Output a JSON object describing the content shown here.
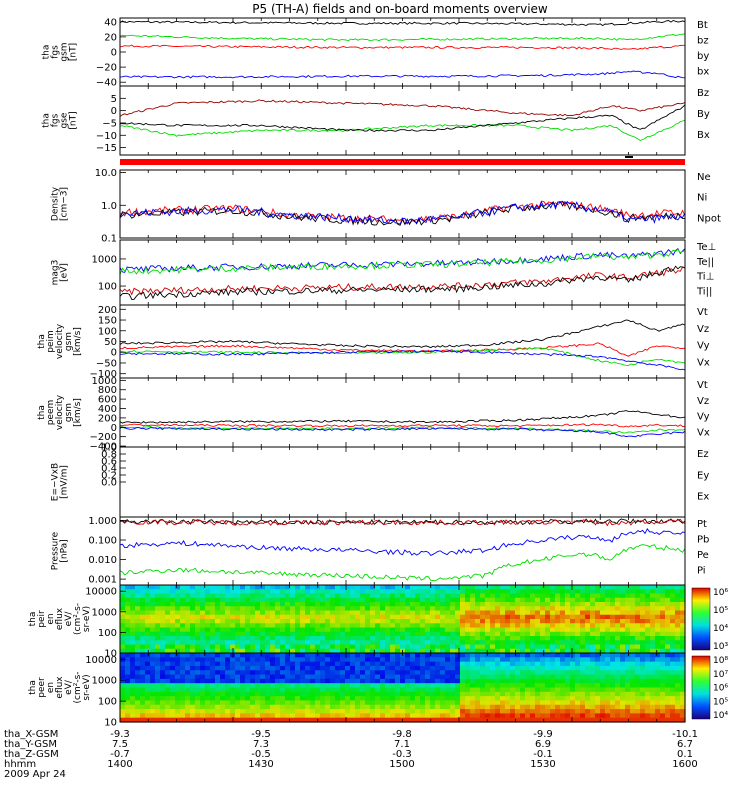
{
  "title": "P5 (TH-A) fields and on-board moments overview",
  "footer": {
    "date": "2009 Apr 24",
    "rows": [
      {
        "label": "tha_X-GSM",
        "values": [
          "-9.3",
          "-9.5",
          "-9.8",
          "-9.9",
          "-10.1"
        ]
      },
      {
        "label": "tha_Y-GSM",
        "values": [
          "7.5",
          "7.3",
          "7.1",
          "6.9",
          "6.7"
        ]
      },
      {
        "label": "tha_Z-GSM",
        "values": [
          "-0.7",
          "-0.5",
          "-0.3",
          "-0.1",
          "0.1"
        ]
      },
      {
        "label": "hhmm",
        "values": [
          "1400",
          "1430",
          "1500",
          "1530",
          "1600"
        ]
      }
    ]
  },
  "colorbars": {
    "ion": [
      "10⁶",
      "10⁵",
      "10⁴",
      "10³"
    ],
    "electron": [
      "10⁸",
      "10⁷",
      "10⁶",
      "10⁵",
      "10⁴"
    ]
  },
  "chart_data": [
    {
      "type": "line",
      "id": "fgs_gsm",
      "ylabel": [
        "tha",
        "fgs",
        "gsm",
        "[nT]"
      ],
      "ylim": [
        -45,
        45
      ],
      "yticks": [
        "40",
        "20",
        "0",
        "−20",
        "−40"
      ],
      "yticks_values": [
        40,
        20,
        0,
        -20,
        -40
      ],
      "x": [
        0,
        0.2,
        0.4,
        0.6,
        0.75,
        0.85,
        0.9,
        0.95,
        1.0
      ],
      "series": [
        {
          "name": "Bt",
          "color": "#000000",
          "values": [
            40,
            39,
            38,
            38,
            37,
            36,
            38,
            40,
            41
          ]
        },
        {
          "name": "bz",
          "color": "#ff0000",
          "values": [
            8,
            7,
            6,
            6,
            6,
            5,
            3,
            6,
            8
          ]
        },
        {
          "name": "by",
          "color": "#00dd00",
          "values": [
            22,
            18,
            16,
            17,
            18,
            18,
            16,
            20,
            24
          ]
        },
        {
          "name": "bx",
          "color": "#0000ff",
          "values": [
            -33,
            -33,
            -32,
            -32,
            -31,
            -29,
            -26,
            -28,
            -35
          ]
        }
      ]
    },
    {
      "type": "line",
      "id": "fgs_gse",
      "ylabel": [
        "tha",
        "fgs",
        "gse",
        "[nT]"
      ],
      "ylim": [
        -18,
        10
      ],
      "yticks": [
        "5",
        "0",
        "−5",
        "−10",
        "−15"
      ],
      "yticks_values": [
        5,
        0,
        -5,
        -10,
        -15
      ],
      "x": [
        0,
        0.1,
        0.25,
        0.4,
        0.55,
        0.7,
        0.8,
        0.87,
        0.92,
        1.0
      ],
      "series": [
        {
          "name": "Bz",
          "color": "#990000",
          "values": [
            -2,
            3,
            4,
            3,
            2,
            -1,
            -2,
            2,
            0,
            3
          ]
        },
        {
          "name": "By",
          "color": "#00dd00",
          "values": [
            -6,
            -10,
            -8,
            -8,
            -6,
            -6,
            -8,
            -6,
            -12,
            -4
          ]
        },
        {
          "name": "Bx",
          "color": "#000000",
          "values": [
            -5,
            -6,
            -6,
            -8,
            -8,
            -5,
            -3,
            -2,
            -8,
            2
          ]
        }
      ]
    },
    {
      "type": "line",
      "id": "density",
      "scale": "log",
      "ylabel": [
        "Density",
        "[cm−3]"
      ],
      "ylim": [
        0.1,
        12
      ],
      "yticks": [
        "10.0",
        "1.0",
        "0.1"
      ],
      "yticks_values": [
        10,
        1,
        0.1
      ],
      "x": [
        0,
        0.1,
        0.2,
        0.3,
        0.4,
        0.5,
        0.6,
        0.7,
        0.78,
        0.85,
        0.9,
        1.0
      ],
      "series": [
        {
          "name": "Ne",
          "color": "#ff0000",
          "values": [
            0.6,
            0.7,
            0.8,
            0.5,
            0.4,
            0.35,
            0.45,
            0.9,
            1.1,
            0.8,
            0.5,
            0.6
          ]
        },
        {
          "name": "Ni",
          "color": "#000000",
          "values": [
            0.5,
            0.6,
            0.7,
            0.45,
            0.35,
            0.3,
            0.4,
            0.8,
            1.0,
            0.7,
            0.4,
            0.5
          ]
        },
        {
          "name": "Npot",
          "color": "#0000ff",
          "values": [
            0.55,
            0.65,
            0.75,
            0.5,
            0.4,
            0.32,
            0.42,
            0.85,
            1.05,
            0.75,
            0.35,
            0.45
          ]
        }
      ]
    },
    {
      "type": "line",
      "id": "temperature",
      "scale": "log",
      "ylabel": [
        "mag3",
        "[eV]"
      ],
      "ylim": [
        20,
        5000
      ],
      "yticks": [
        "1000",
        "100"
      ],
      "yticks_values": [
        1000,
        100
      ],
      "x": [
        0,
        0.2,
        0.4,
        0.6,
        0.75,
        0.85,
        0.9,
        0.95,
        1.0
      ],
      "series": [
        {
          "name": "Te⊥",
          "color": "#cc0000",
          "values": [
            60,
            80,
            90,
            100,
            150,
            250,
            200,
            300,
            400
          ]
        },
        {
          "name": "Te||",
          "color": "#000000",
          "values": [
            40,
            60,
            70,
            80,
            120,
            220,
            150,
            300,
            600
          ]
        },
        {
          "name": "Ti⊥",
          "color": "#0000ff",
          "values": [
            400,
            500,
            600,
            700,
            1000,
            1400,
            1200,
            1600,
            2000
          ]
        },
        {
          "name": "Ti||",
          "color": "#00dd00",
          "values": [
            350,
            450,
            550,
            650,
            900,
            1300,
            1100,
            1500,
            1800
          ]
        }
      ]
    },
    {
      "type": "line",
      "id": "peim_velocity",
      "ylabel": [
        "tha",
        "peim",
        "velocity",
        "gsm",
        "[km/s]"
      ],
      "ylim": [
        -120,
        220
      ],
      "yticks": [
        "200",
        "150",
        "100",
        "50",
        "0",
        "−50",
        "−100"
      ],
      "yticks_values": [
        200,
        150,
        100,
        50,
        0,
        -50,
        -100
      ],
      "x": [
        0,
        0.2,
        0.4,
        0.55,
        0.65,
        0.75,
        0.85,
        0.9,
        0.95,
        1.0
      ],
      "series": [
        {
          "name": "Vt",
          "color": "#000000",
          "values": [
            40,
            50,
            30,
            25,
            35,
            60,
            120,
            150,
            100,
            130
          ]
        },
        {
          "name": "Vz",
          "color": "#ff0000",
          "values": [
            20,
            30,
            10,
            5,
            10,
            20,
            40,
            -20,
            30,
            20
          ]
        },
        {
          "name": "Vy",
          "color": "#00dd00",
          "values": [
            5,
            0,
            -5,
            0,
            10,
            20,
            -40,
            -60,
            -30,
            -50
          ]
        },
        {
          "name": "Vx",
          "color": "#0000ff",
          "values": [
            -5,
            -10,
            0,
            5,
            0,
            -10,
            -20,
            -40,
            -60,
            -80
          ]
        }
      ]
    },
    {
      "type": "line",
      "id": "peem_velocity",
      "ylabel": [
        "tha",
        "peem",
        "velocity",
        "gsm",
        "[km/s]"
      ],
      "ylim": [
        -420,
        1050
      ],
      "yticks": [
        "1000",
        "800",
        "600",
        "400",
        "200",
        "0",
        "−200",
        "−400"
      ],
      "yticks_values": [
        1000,
        800,
        600,
        400,
        200,
        0,
        -200,
        -400
      ],
      "x": [
        0,
        0.2,
        0.4,
        0.55,
        0.7,
        0.85,
        0.9,
        0.95,
        1.0
      ],
      "series": [
        {
          "name": "Vt",
          "color": "#000000",
          "values": [
            100,
            120,
            130,
            110,
            150,
            250,
            350,
            280,
            200
          ]
        },
        {
          "name": "Vz",
          "color": "#ff0000",
          "values": [
            50,
            40,
            30,
            40,
            30,
            60,
            20,
            50,
            30
          ]
        },
        {
          "name": "Vy",
          "color": "#00dd00",
          "values": [
            0,
            -20,
            -30,
            -10,
            -20,
            -80,
            -120,
            -60,
            -40
          ]
        },
        {
          "name": "Vx",
          "color": "#0000ff",
          "values": [
            -20,
            -40,
            -50,
            -30,
            -40,
            -100,
            -200,
            -150,
            -100
          ]
        }
      ]
    },
    {
      "type": "line",
      "id": "efield",
      "ylabel": [
        "E=−VxB",
        "[mV/m]"
      ],
      "ylim": [
        -1,
        1
      ],
      "yticks": [
        "1.0",
        "0.8",
        "0.6",
        "0.4",
        "0.2",
        "0.0"
      ],
      "yticks_values": [
        1.0,
        0.8,
        0.6,
        0.4,
        0.2,
        0.0
      ],
      "x": [],
      "series": [
        {
          "name": "Ez",
          "color": "#ff0000",
          "values": []
        },
        {
          "name": "Ey",
          "color": "#00dd00",
          "values": []
        },
        {
          "name": "Ex",
          "color": "#0000ff",
          "values": []
        }
      ]
    },
    {
      "type": "line",
      "id": "pressure",
      "scale": "log",
      "ylabel": [
        "Pressure",
        "[nPa]"
      ],
      "ylim": [
        0.0005,
        1.5
      ],
      "yticks": [
        "1.000",
        "0.100",
        "0.010",
        "0.001"
      ],
      "yticks_values": [
        1,
        0.1,
        0.01,
        0.001
      ],
      "x": [
        0,
        0.1,
        0.25,
        0.4,
        0.55,
        0.65,
        0.75,
        0.82,
        0.87,
        0.92,
        1.0
      ],
      "series": [
        {
          "name": "Pt",
          "color": "#000000",
          "values": [
            0.9,
            0.85,
            0.8,
            0.8,
            0.8,
            0.8,
            0.85,
            0.9,
            0.9,
            0.9,
            0.95
          ]
        },
        {
          "name": "Pb",
          "color": "#cc0000",
          "values": [
            0.85,
            0.8,
            0.75,
            0.78,
            0.78,
            0.78,
            0.8,
            0.85,
            0.7,
            0.8,
            0.9
          ]
        },
        {
          "name": "Pe",
          "color": "#00dd00",
          "values": [
            0.002,
            0.003,
            0.002,
            0.0015,
            0.001,
            0.0015,
            0.01,
            0.02,
            0.01,
            0.05,
            0.03
          ]
        },
        {
          "name": "Pi",
          "color": "#0000ff",
          "values": [
            0.05,
            0.07,
            0.04,
            0.03,
            0.02,
            0.03,
            0.1,
            0.15,
            0.1,
            0.3,
            0.2
          ]
        }
      ]
    },
    {
      "type": "heatmap",
      "id": "peir_spec",
      "ylabel": [
        "tha",
        "peir",
        "en",
        "eflux",
        "eV/",
        "(cm²-s-",
        "sr-eV)"
      ],
      "ylim": [
        10,
        20000
      ],
      "scale": "log",
      "yticks": [
        "10000",
        "1000",
        "100",
        "10"
      ],
      "yticks_values": [
        10000,
        1000,
        100,
        10
      ]
    },
    {
      "type": "heatmap",
      "id": "peer_spec",
      "ylabel": [
        "tha",
        "peer",
        "en",
        "eflux",
        "eV/",
        "(cm²-s-",
        "sr-eV)"
      ],
      "ylim": [
        10,
        20000
      ],
      "scale": "log",
      "yticks": [
        "10000",
        "1000",
        "100",
        "10"
      ],
      "yticks_values": [
        10000,
        1000,
        100,
        10
      ]
    }
  ]
}
